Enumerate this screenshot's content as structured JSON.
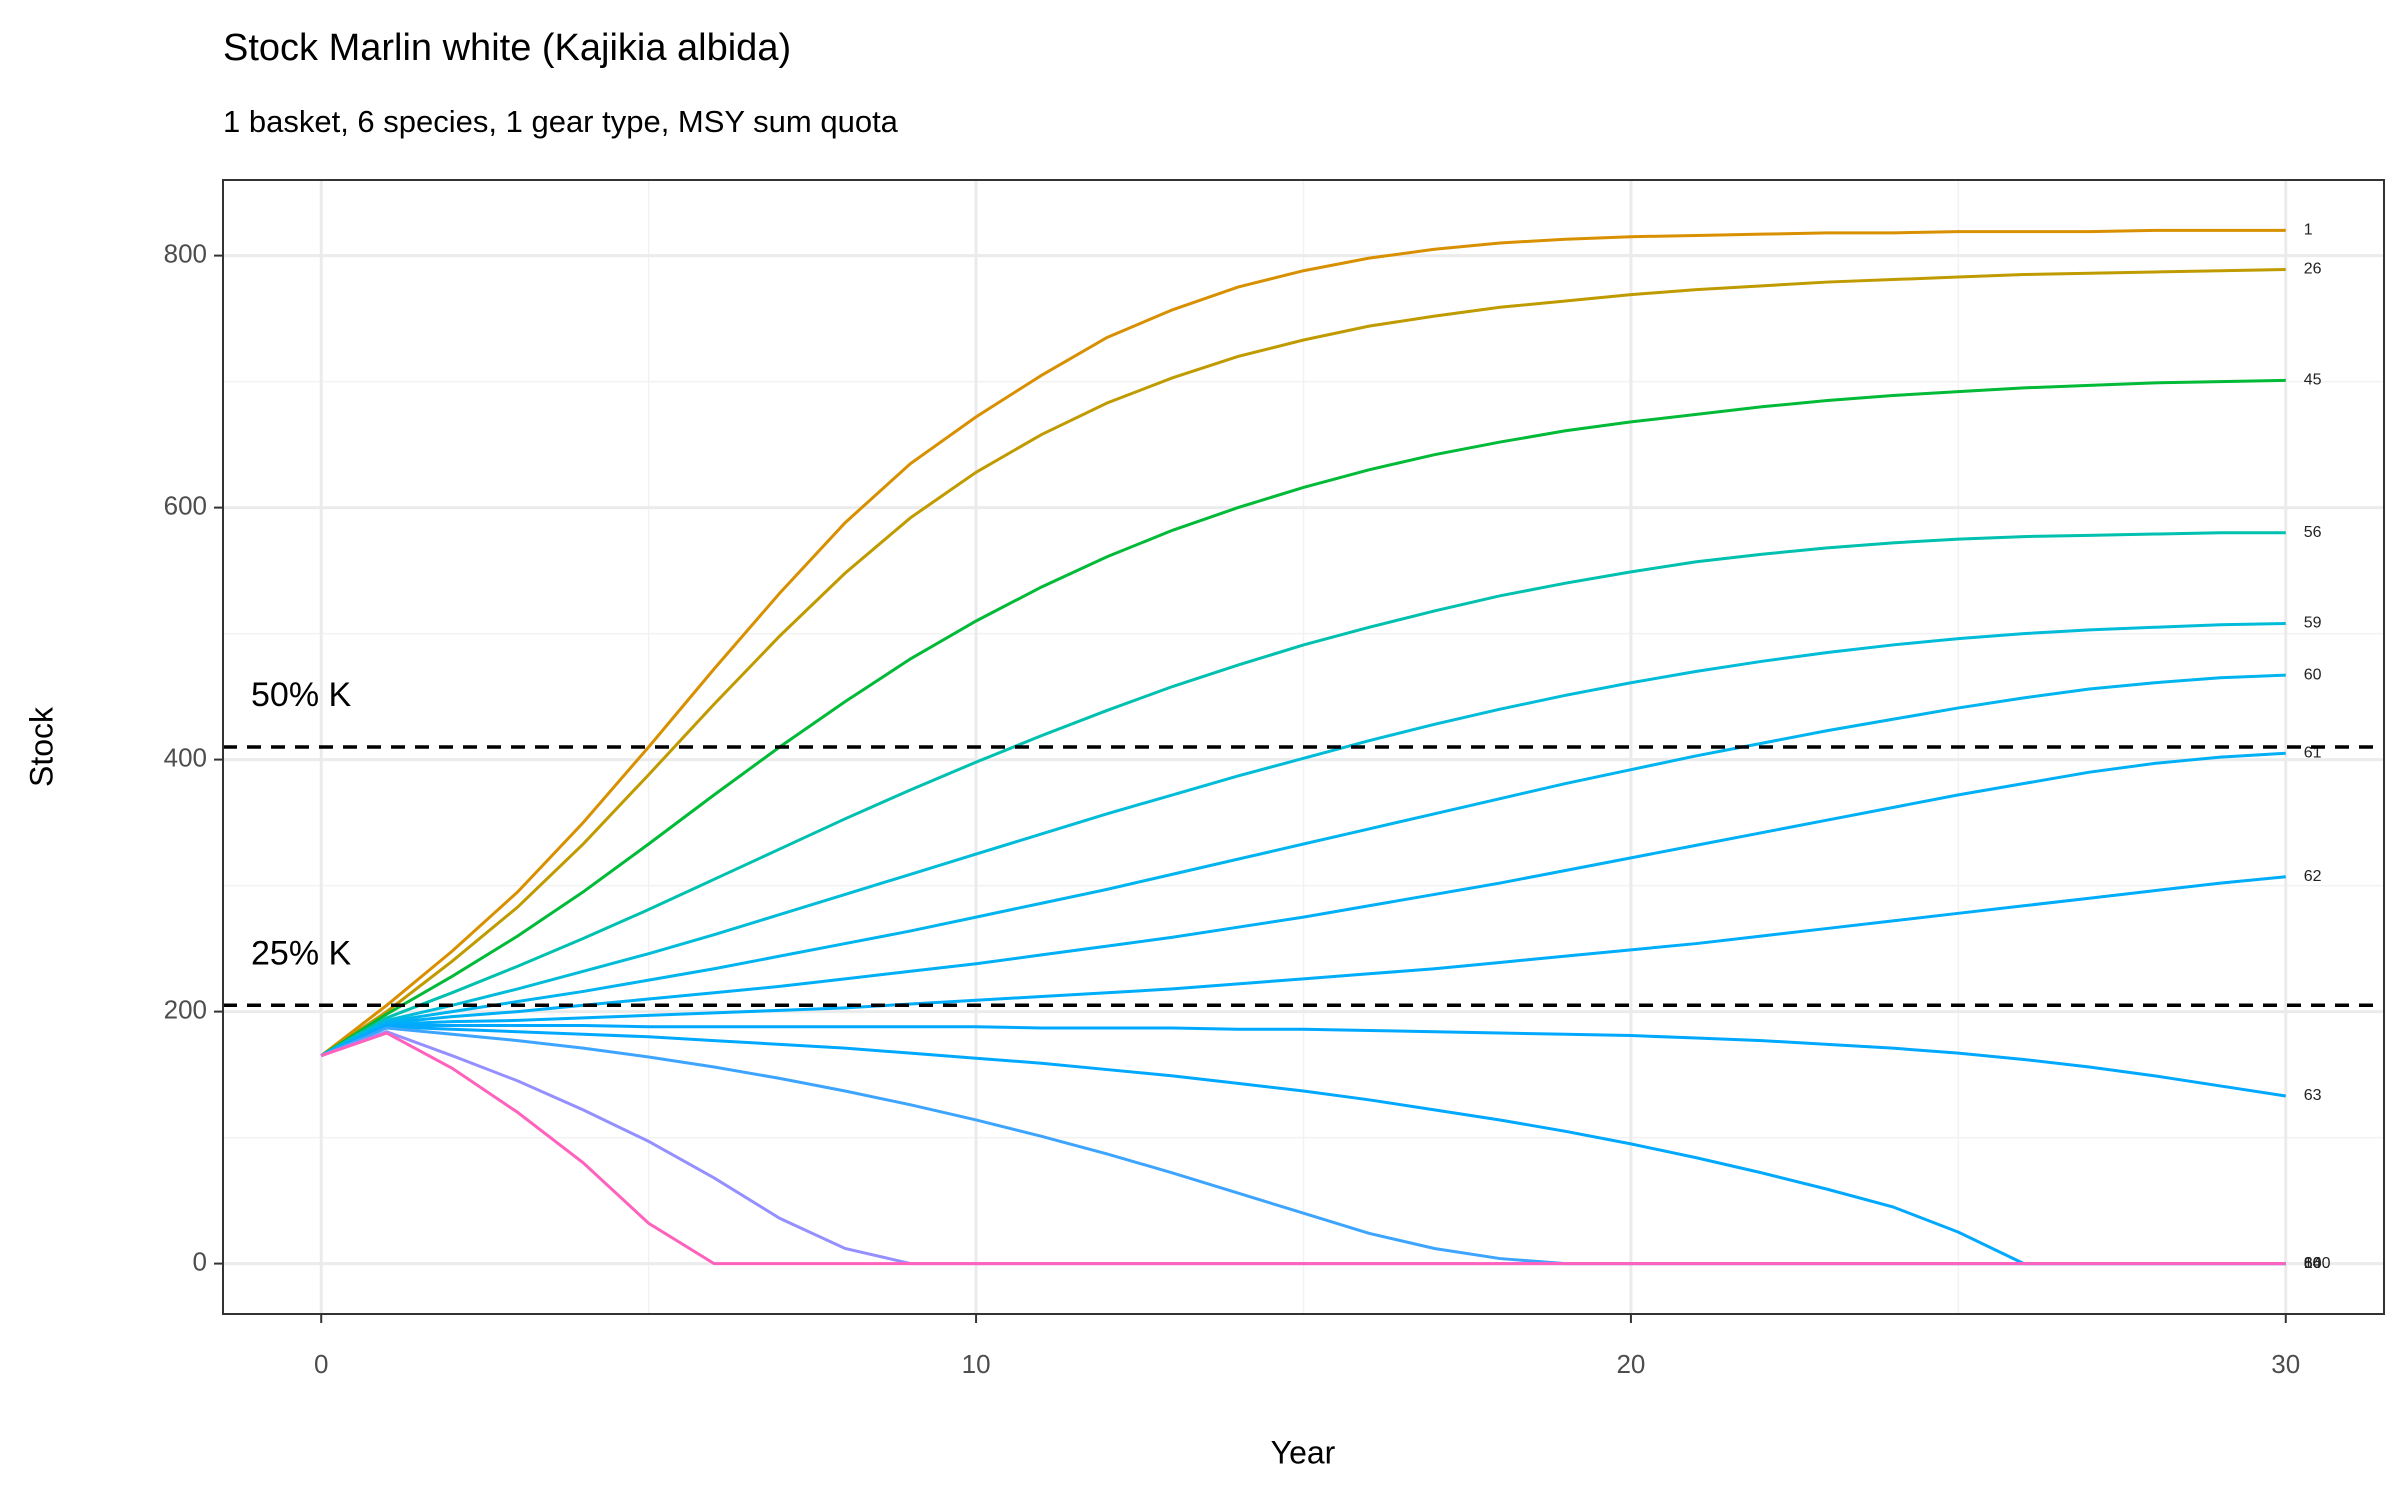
{
  "chart_data": {
    "type": "line",
    "title": "Stock Marlin white (Kajikia albida)",
    "subtitle": "1 basket, 6 species, 1 gear type, MSY sum quota",
    "x_label": "Year",
    "y_label": "Stock",
    "x": [
      0,
      1,
      2,
      3,
      4,
      5,
      6,
      7,
      8,
      9,
      10,
      11,
      12,
      13,
      14,
      15,
      16,
      17,
      18,
      19,
      20,
      21,
      22,
      23,
      24,
      25,
      26,
      27,
      28,
      29,
      30
    ],
    "xlim": [
      -1.5,
      31.5
    ],
    "xticks": [
      0,
      10,
      20,
      30
    ],
    "ylim": [
      -40,
      860
    ],
    "yticks": [
      0,
      200,
      400,
      600,
      800
    ],
    "grid": true,
    "hlines": [
      {
        "value": 410,
        "label": "50% K"
      },
      {
        "value": 205,
        "label": "25% K"
      }
    ],
    "series": [
      {
        "name": "1",
        "color": "#d89000",
        "values": [
          165,
          205,
          248,
          295,
          350,
          410,
          472,
          532,
          588,
          635,
          672,
          705,
          735,
          757,
          775,
          788,
          798,
          805,
          810,
          813,
          815,
          816,
          817,
          818,
          818,
          819,
          819,
          819,
          820,
          820,
          820
        ]
      },
      {
        "name": "26",
        "color": "#c09b00",
        "values": [
          165,
          200,
          240,
          283,
          333,
          388,
          444,
          498,
          548,
          592,
          628,
          658,
          683,
          703,
          720,
          733,
          744,
          752,
          759,
          764,
          769,
          773,
          776,
          779,
          781,
          783,
          785,
          786,
          787,
          788,
          789
        ]
      },
      {
        "name": "45",
        "color": "#00ba38",
        "values": [
          165,
          198,
          228,
          260,
          295,
          333,
          372,
          410,
          446,
          480,
          510,
          537,
          561,
          582,
          600,
          616,
          630,
          642,
          652,
          661,
          668,
          674,
          680,
          685,
          689,
          692,
          695,
          697,
          699,
          700,
          701
        ]
      },
      {
        "name": "56",
        "color": "#00c0af",
        "values": [
          165,
          195,
          215,
          236,
          258,
          281,
          305,
          329,
          353,
          376,
          398,
          419,
          439,
          458,
          475,
          491,
          505,
          518,
          530,
          540,
          549,
          557,
          563,
          568,
          572,
          575,
          577,
          578,
          579,
          580,
          580
        ]
      },
      {
        "name": "59",
        "color": "#00bcd8",
        "values": [
          165,
          193,
          205,
          218,
          232,
          246,
          261,
          277,
          293,
          309,
          325,
          341,
          357,
          372,
          387,
          401,
          415,
          428,
          440,
          451,
          461,
          470,
          478,
          485,
          491,
          496,
          500,
          503,
          505,
          507,
          508
        ]
      },
      {
        "name": "60",
        "color": "#00b4ef",
        "values": [
          165,
          192,
          200,
          208,
          216,
          225,
          234,
          244,
          254,
          264,
          275,
          286,
          297,
          309,
          321,
          333,
          345,
          357,
          369,
          381,
          392,
          403,
          413,
          423,
          432,
          441,
          449,
          456,
          461,
          465,
          467
        ]
      },
      {
        "name": "61",
        "color": "#00b0f6",
        "values": [
          165,
          191,
          196,
          200,
          205,
          210,
          215,
          220,
          226,
          232,
          238,
          245,
          252,
          259,
          267,
          275,
          284,
          293,
          302,
          312,
          322,
          332,
          342,
          352,
          362,
          372,
          381,
          390,
          397,
          402,
          405
        ]
      },
      {
        "name": "62",
        "color": "#00adfa",
        "values": [
          165,
          190,
          192,
          193,
          195,
          197,
          199,
          201,
          203,
          206,
          209,
          212,
          215,
          218,
          222,
          226,
          230,
          234,
          239,
          244,
          249,
          254,
          260,
          266,
          272,
          278,
          284,
          290,
          296,
          302,
          307
        ]
      },
      {
        "name": "63",
        "color": "#00a9ff",
        "values": [
          165,
          189,
          189,
          189,
          189,
          188,
          188,
          188,
          188,
          188,
          188,
          187,
          187,
          187,
          186,
          186,
          185,
          184,
          183,
          182,
          181,
          179,
          177,
          174,
          171,
          167,
          162,
          156,
          149,
          141,
          133
        ]
      },
      {
        "name": "64",
        "color": "#00a9ff",
        "values": [
          165,
          188,
          186,
          184,
          182,
          180,
          177,
          174,
          171,
          167,
          163,
          159,
          154,
          149,
          143,
          137,
          130,
          122,
          114,
          105,
          95,
          84,
          72,
          59,
          45,
          25,
          0,
          0,
          0,
          0,
          0
        ]
      },
      {
        "name": "66",
        "color": "#3da5ff",
        "values": [
          165,
          187,
          182,
          177,
          171,
          164,
          156,
          147,
          137,
          126,
          114,
          101,
          87,
          72,
          56,
          40,
          24,
          12,
          4,
          0,
          0,
          0,
          0,
          0,
          0,
          0,
          0,
          0,
          0,
          0,
          0
        ]
      },
      {
        "name": "80",
        "color": "#9590ff",
        "values": [
          165,
          184,
          165,
          145,
          122,
          97,
          68,
          36,
          12,
          0,
          0,
          0,
          0,
          0,
          0,
          0,
          0,
          0,
          0,
          0,
          0,
          0,
          0,
          0,
          0,
          0,
          0,
          0,
          0,
          0,
          0
        ]
      },
      {
        "name": "100",
        "color": "#ff62bc",
        "values": [
          165,
          183,
          155,
          120,
          80,
          32,
          0,
          0,
          0,
          0,
          0,
          0,
          0,
          0,
          0,
          0,
          0,
          0,
          0,
          0,
          0,
          0,
          0,
          0,
          0,
          0,
          0,
          0,
          0,
          0,
          0
        ]
      }
    ]
  }
}
